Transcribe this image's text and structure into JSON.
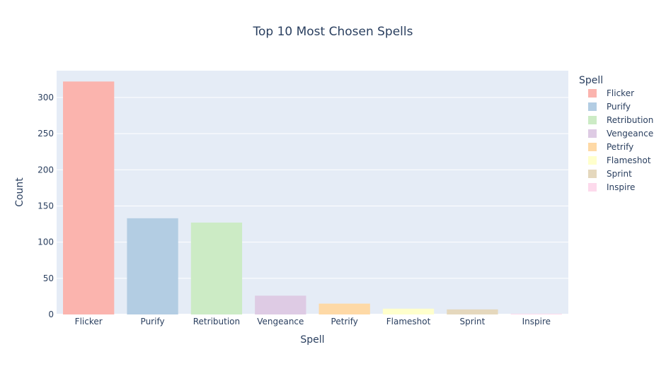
{
  "chart_data": {
    "type": "bar",
    "title": "Top 10 Most Chosen Spells",
    "xlabel": "Spell",
    "ylabel": "Count",
    "categories": [
      "Flicker",
      "Purify",
      "Retribution",
      "Vengeance",
      "Petrify",
      "Flameshot",
      "Sprint",
      "Inspire"
    ],
    "values": [
      322,
      133,
      127,
      26,
      15,
      8,
      7,
      1
    ],
    "ylim": [
      0,
      337
    ],
    "yticks": [
      0,
      50,
      100,
      150,
      200,
      250,
      300
    ],
    "grid": true,
    "legend": {
      "title": "Spell",
      "placement": "right"
    },
    "colors": [
      "#FBB4AE",
      "#B3CDE3",
      "#CCEBC5",
      "#DECBE4",
      "#FED9A6",
      "#FFFFCC",
      "#E5D8BD",
      "#FDDAEC"
    ],
    "plot_background": "#E5ECF6",
    "text_color": "#2a3f5f"
  }
}
